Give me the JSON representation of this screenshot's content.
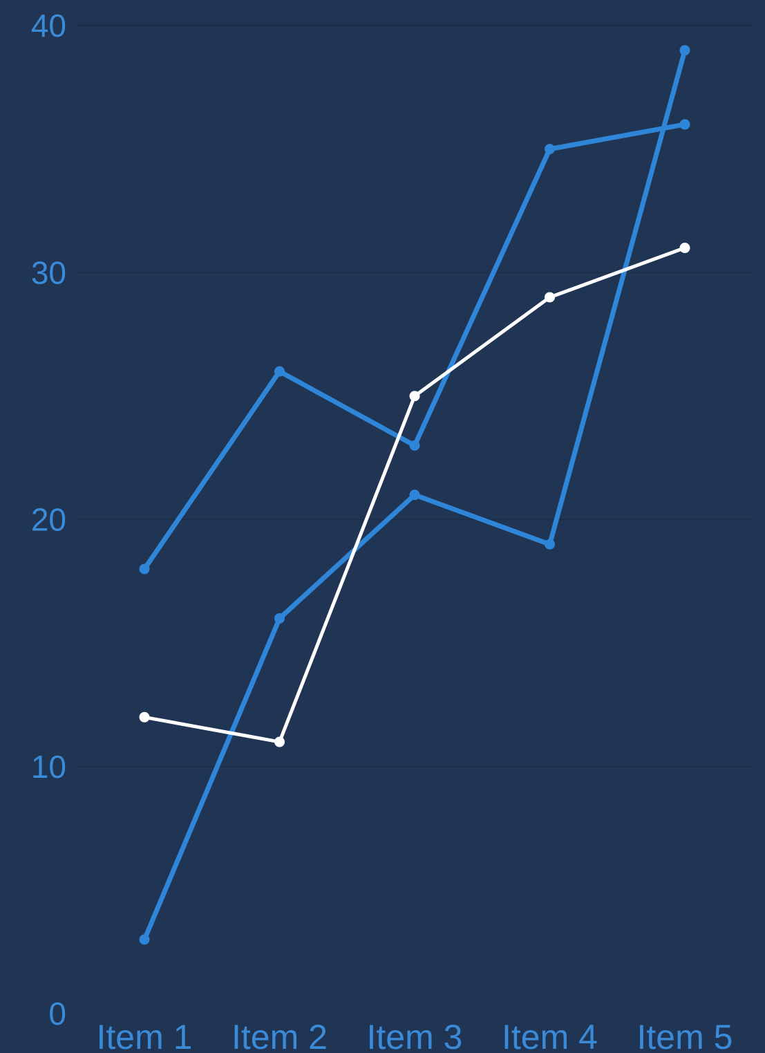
{
  "chart_data": {
    "type": "line",
    "categories": [
      "Item 1",
      "Item 2",
      "Item 3",
      "Item 4",
      "Item 5"
    ],
    "y_ticks": [
      "0",
      "10",
      "20",
      "30",
      "40"
    ],
    "ylim": [
      0,
      40
    ],
    "grid": true,
    "legend": "none",
    "series": [
      {
        "values": [
          18,
          26,
          23,
          35,
          36
        ],
        "color": "#2f86d8"
      },
      {
        "values": [
          3,
          16,
          21,
          19,
          39
        ],
        "color": "#2f86d8"
      },
      {
        "values": [
          12,
          11,
          25,
          29,
          31
        ],
        "color": "#ffffff"
      }
    ],
    "colors": {
      "background": "#203553",
      "axis_text": "#3a8ad8",
      "grid": "#1b2d47"
    }
  }
}
